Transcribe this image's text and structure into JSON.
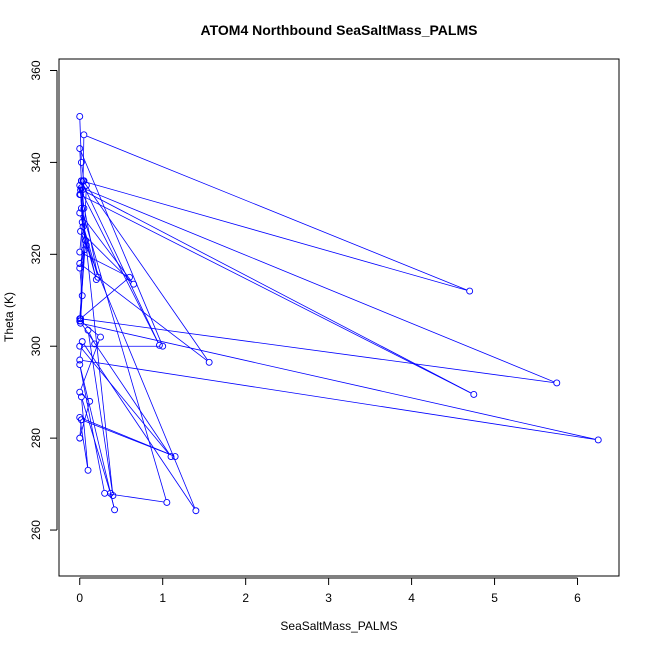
{
  "chart_data": {
    "type": "line",
    "title": "ATOM4 Northbound SeaSaltMass_PALMS",
    "xlabel": "SeaSaltMass_PALMS",
    "ylabel": "Theta (K)",
    "xlim": [
      -0.25,
      6.5
    ],
    "ylim": [
      250,
      362.5
    ],
    "xticks": [
      0,
      1,
      2,
      3,
      4,
      5,
      6
    ],
    "yticks": [
      260,
      280,
      300,
      320,
      340,
      360
    ],
    "grid": false,
    "series_color": "#0000ff",
    "series": [
      {
        "markers": true,
        "x": [
          0.0,
          0.02,
          0.05,
          0.01,
          0.04,
          0.08,
          0.0,
          0.03,
          0.01,
          0.6,
          0.0,
          0.05,
          0.02,
          0.96,
          0.01,
          0.03,
          0.2,
          0.07,
          0.0,
          1.1,
          0.0,
          1.0,
          0.0,
          0.02,
          4.7,
          0.05,
          0.01,
          0.25,
          0.0,
          0.12,
          0.0,
          0.02,
          1.15,
          0.0,
          0.1,
          0.02,
          0.37,
          0.42,
          0.0,
          0.3,
          1.05,
          0.02,
          0.04,
          1.56,
          0.0,
          0.06,
          0.0,
          5.75,
          0.02,
          0.05,
          0.03,
          4.75,
          0.0,
          0.08,
          0.01,
          6.25,
          0.0,
          0.03,
          1.4,
          0.01,
          0.65,
          0.0,
          0.22,
          0.0,
          0.4,
          0.1,
          0.18
        ],
        "y": [
          350.0,
          340.0,
          336.0,
          333.0,
          326.0,
          322.0,
          317.0,
          311.0,
          306.0,
          315.0,
          320.5,
          330.0,
          336.0,
          300.2,
          334.0,
          327.0,
          314.5,
          323.0,
          305.5,
          276.0,
          300.0,
          300.0,
          343.0,
          336.0,
          312.0,
          346.0,
          305.5,
          302.0,
          290.0,
          288.0,
          280.0,
          284.0,
          276.0,
          284.5,
          273.0,
          289.0,
          268.0,
          264.4,
          296.0,
          268.0,
          266.0,
          330.0,
          336.0,
          296.5,
          318.0,
          321.0,
          306.0,
          292.0,
          334.5,
          336.0,
          334.0,
          289.5,
          333.0,
          335.0,
          305.0,
          279.6,
          297.0,
          301.0,
          264.2,
          325.0,
          313.5,
          329.0,
          315.0,
          335.0,
          267.5,
          303.5,
          300.5
        ]
      }
    ]
  }
}
